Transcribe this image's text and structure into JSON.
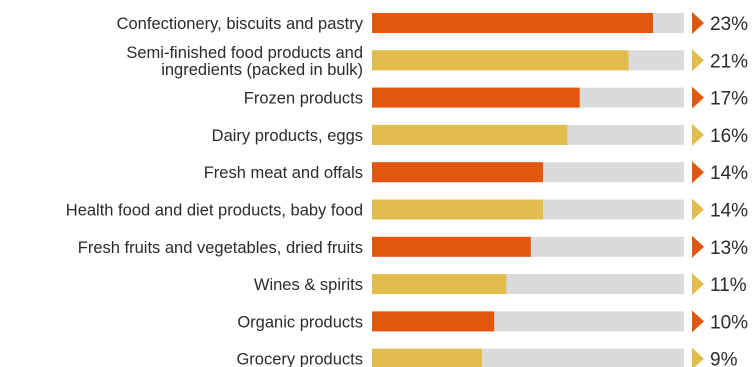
{
  "chart_data": {
    "type": "bar",
    "orientation": "horizontal",
    "title": "",
    "xlabel": "",
    "ylabel": "",
    "grid": false,
    "legend": "none",
    "xlim": [
      0,
      24
    ],
    "categories": [
      "Confectionery, biscuits and pastry",
      [
        "Semi-finished food products and",
        "ingredients (packed in bulk)"
      ],
      "Frozen products",
      "Dairy products, eggs",
      "Fresh meat and offals",
      "Health food and diet products, baby food",
      "Fresh fruits and vegetables, dried fruits",
      "Wines & spirits",
      "Organic products",
      "Grocery products"
    ],
    "values": [
      23,
      21,
      17,
      16,
      14,
      14,
      13,
      11,
      10,
      9
    ],
    "value_labels": [
      "23%",
      "21%",
      "17%",
      "16%",
      "14%",
      "14%",
      "13%",
      "11%",
      "10%",
      "9%"
    ],
    "colors": {
      "orange": "#e2560f",
      "gold": "#e1bd4d",
      "track": "#dbdbdb"
    },
    "bar_color_pattern": [
      "orange",
      "gold"
    ]
  }
}
